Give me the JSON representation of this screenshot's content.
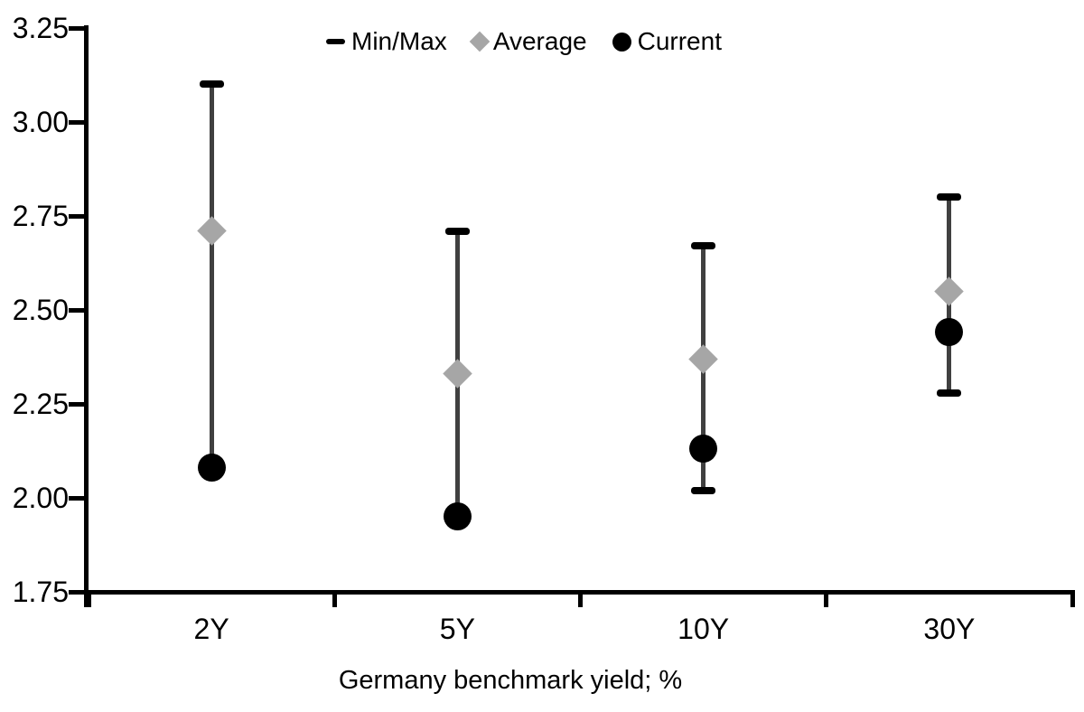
{
  "chart_data": {
    "type": "scatter",
    "title": "",
    "xlabel": "Germany benchmark yield; %",
    "ylabel": "",
    "ylim": [
      1.75,
      3.25
    ],
    "ytick_step": 0.25,
    "ytick_labels": [
      "3.25",
      "3.00",
      "2.75",
      "2.50",
      "2.25",
      "2.00",
      "1.75"
    ],
    "categories": [
      "2Y",
      "5Y",
      "10Y",
      "30Y"
    ],
    "series": [
      {
        "name": "Min/Max",
        "marker": "range-bar",
        "max": [
          3.1,
          2.71,
          2.67,
          2.8
        ],
        "min": [
          2.08,
          1.95,
          2.02,
          2.28
        ]
      },
      {
        "name": "Average",
        "marker": "diamond",
        "values": [
          2.71,
          2.33,
          2.37,
          2.55
        ]
      },
      {
        "name": "Current",
        "marker": "circle",
        "values": [
          2.08,
          1.95,
          2.13,
          2.44
        ]
      }
    ],
    "legend_position": "top-center",
    "grid": false
  },
  "colors": {
    "whisker_line": "#404040",
    "whisker_cap": "#000000",
    "average_marker": "#a6a6a6",
    "current_marker": "#000000",
    "axis": "#000000",
    "text": "#000000",
    "background": "#ffffff"
  }
}
